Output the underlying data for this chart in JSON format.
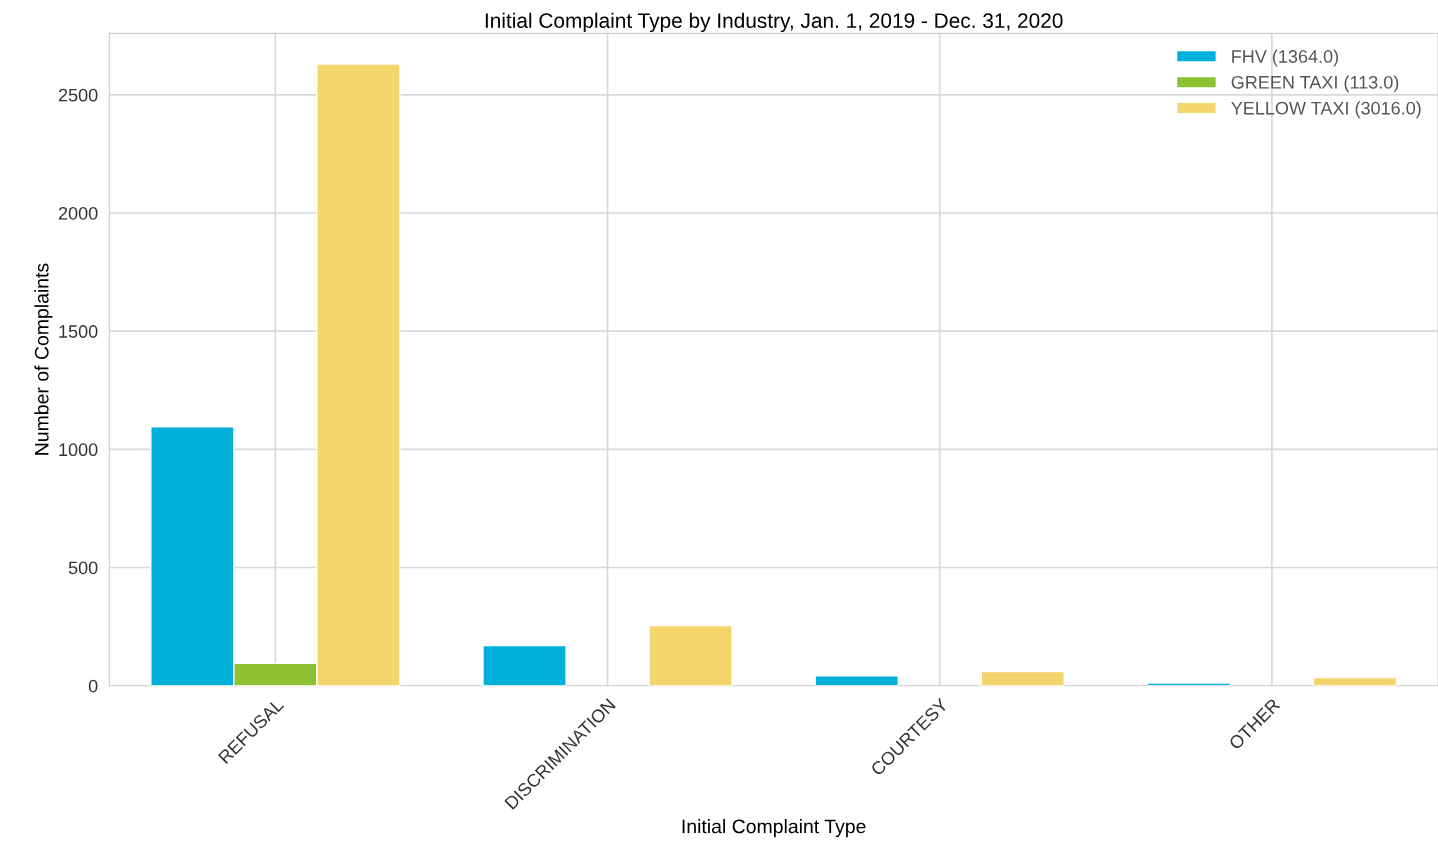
{
  "chart_data": {
    "type": "bar",
    "title": "Initial Complaint Type by Industry, Jan. 1, 2019 - Dec. 31, 2020",
    "xlabel": "Initial Complaint Type",
    "ylabel": "Number of Complaints",
    "categories": [
      "REFUSAL",
      "DISCRIMINATION",
      "COURTESY",
      "OTHER"
    ],
    "series": [
      {
        "name": "FHV (1364.0)",
        "color": "#00b0db",
        "values": [
          1095,
          170,
          42,
          11
        ]
      },
      {
        "name": "GREEN TAXI (113.0)",
        "color": "#8fc031",
        "values": [
          95,
          null,
          null,
          null
        ]
      },
      {
        "name": "YELLOW TAXI (3016.0)",
        "color": "#f4d56c",
        "values": [
          2630,
          255,
          60,
          34
        ]
      }
    ],
    "ylim": [
      0,
      2760
    ],
    "yticks": [
      0,
      500,
      1000,
      1500,
      2000,
      2500
    ],
    "grid": true,
    "legend": "top right"
  }
}
